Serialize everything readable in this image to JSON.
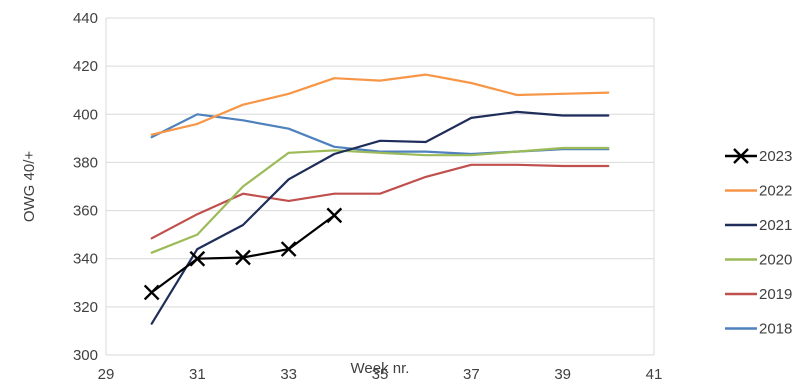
{
  "chart_data": {
    "type": "line",
    "xlabel": "Week nr.",
    "ylabel": "OWG 40/+",
    "xlim": [
      29,
      41
    ],
    "ylim": [
      300,
      440
    ],
    "x_ticks": [
      "29",
      "31",
      "33",
      "35",
      "37",
      "39",
      "41"
    ],
    "y_ticks": [
      "300",
      "320",
      "340",
      "360",
      "380",
      "400",
      "420",
      "440"
    ],
    "grid": "horizontal",
    "legend": "right",
    "series": [
      {
        "name": "2023",
        "color": "#000000",
        "marker": "x",
        "x": [
          30,
          31,
          32,
          33,
          34
        ],
        "y": [
          326,
          340,
          340.5,
          344,
          358
        ]
      },
      {
        "name": "2022",
        "color": "#F79646",
        "marker": "none",
        "x": [
          30,
          31,
          32,
          33,
          34,
          35,
          36,
          37,
          38,
          39,
          40
        ],
        "y": [
          391.5,
          396,
          404,
          408.5,
          415,
          414,
          416.5,
          413,
          408,
          408.5,
          409
        ]
      },
      {
        "name": "2021",
        "color": "#1F2D5A",
        "marker": "none",
        "x": [
          30,
          31,
          32,
          33,
          34,
          35,
          36,
          37,
          38,
          39,
          40
        ],
        "y": [
          313,
          344,
          354,
          373,
          383.5,
          389,
          388.5,
          398.5,
          401,
          399.5,
          399.5
        ]
      },
      {
        "name": "2020",
        "color": "#9BBB59",
        "marker": "none",
        "x": [
          30,
          31,
          32,
          33,
          34,
          35,
          36,
          37,
          38,
          39,
          40
        ],
        "y": [
          342.5,
          350,
          370,
          384,
          385,
          384,
          383,
          383,
          384.5,
          386,
          386
        ]
      },
      {
        "name": "2019",
        "color": "#C0504D",
        "marker": "none",
        "x": [
          30,
          31,
          32,
          33,
          34,
          35,
          36,
          37,
          38,
          39,
          40
        ],
        "y": [
          348.5,
          358.5,
          367,
          364,
          367,
          367,
          374,
          379,
          379,
          378.5,
          378.5
        ]
      },
      {
        "name": "2018",
        "color": "#4F81BD",
        "marker": "none",
        "x": [
          30,
          31,
          32,
          33,
          34,
          35,
          36,
          37,
          38,
          39,
          40
        ],
        "y": [
          390.5,
          400,
          397.5,
          394,
          386.5,
          384.5,
          384.5,
          383.5,
          384.5,
          385.5,
          385.5
        ]
      }
    ]
  }
}
